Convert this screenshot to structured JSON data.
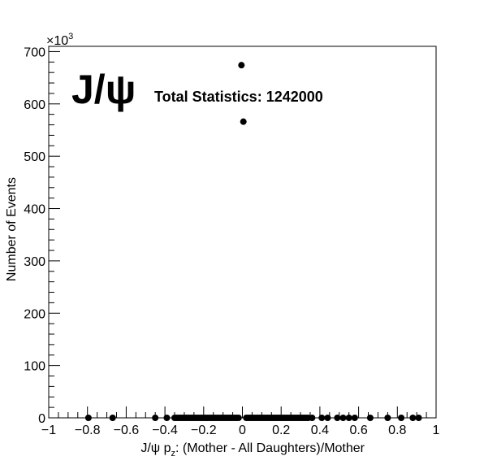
{
  "chart_data": {
    "type": "scatter",
    "title": "",
    "particle_label": "J/ψ",
    "stats_label": "Total Statistics: 1242000",
    "xlabel_parts": {
      "pre": "J/ψ p",
      "sub": "z",
      "post": ": (Mother - All Daughters)/Mother"
    },
    "ylabel": "Number of Events",
    "y_multiplier": {
      "base": "×10",
      "exp": "3"
    },
    "xlim": [
      -1,
      1
    ],
    "ylim": [
      0,
      710
    ],
    "x_ticks": [
      -1,
      -0.8,
      -0.6,
      -0.4,
      -0.2,
      0,
      0.2,
      0.4,
      0.6,
      0.8,
      1
    ],
    "x_tick_labels": [
      "−1",
      "−0.8",
      "−0.6",
      "−0.4",
      "−0.2",
      "0",
      "0.2",
      "0.4",
      "0.6",
      "0.8",
      "1"
    ],
    "y_ticks": [
      0,
      100,
      200,
      300,
      400,
      500,
      600,
      700
    ],
    "y_tick_labels": [
      "0",
      "100",
      "200",
      "300",
      "400",
      "500",
      "600",
      "700"
    ],
    "grid": false,
    "series": [
      {
        "marker": "filled-circle",
        "color": "#000000",
        "points": [
          [
            -0.795,
            0
          ],
          [
            -0.67,
            0
          ],
          [
            -0.45,
            0
          ],
          [
            -0.39,
            0
          ],
          [
            -0.35,
            0
          ],
          [
            -0.34,
            0
          ],
          [
            -0.33,
            0
          ],
          [
            -0.32,
            0
          ],
          [
            -0.31,
            0
          ],
          [
            -0.3,
            0
          ],
          [
            -0.29,
            0
          ],
          [
            -0.28,
            0
          ],
          [
            -0.27,
            0
          ],
          [
            -0.26,
            0
          ],
          [
            -0.25,
            0
          ],
          [
            -0.24,
            0
          ],
          [
            -0.23,
            0
          ],
          [
            -0.22,
            0
          ],
          [
            -0.21,
            0
          ],
          [
            -0.2,
            0
          ],
          [
            -0.19,
            0
          ],
          [
            -0.18,
            0
          ],
          [
            -0.17,
            0
          ],
          [
            -0.16,
            0
          ],
          [
            -0.15,
            0
          ],
          [
            -0.14,
            0
          ],
          [
            -0.13,
            0
          ],
          [
            -0.12,
            0
          ],
          [
            -0.11,
            0
          ],
          [
            -0.1,
            0
          ],
          [
            -0.09,
            0
          ],
          [
            -0.08,
            0
          ],
          [
            -0.07,
            0
          ],
          [
            -0.06,
            0
          ],
          [
            -0.05,
            0
          ],
          [
            -0.04,
            0
          ],
          [
            -0.03,
            0
          ],
          [
            -0.02,
            0
          ],
          [
            -0.005,
            674
          ],
          [
            0.005,
            566
          ],
          [
            0.02,
            0
          ],
          [
            0.03,
            0
          ],
          [
            0.04,
            0
          ],
          [
            0.05,
            0
          ],
          [
            0.06,
            0
          ],
          [
            0.07,
            0
          ],
          [
            0.08,
            0
          ],
          [
            0.09,
            0
          ],
          [
            0.1,
            0
          ],
          [
            0.11,
            0
          ],
          [
            0.12,
            0
          ],
          [
            0.13,
            0
          ],
          [
            0.14,
            0
          ],
          [
            0.15,
            0
          ],
          [
            0.16,
            0
          ],
          [
            0.17,
            0
          ],
          [
            0.18,
            0
          ],
          [
            0.19,
            0
          ],
          [
            0.2,
            0
          ],
          [
            0.21,
            0
          ],
          [
            0.22,
            0
          ],
          [
            0.23,
            0
          ],
          [
            0.24,
            0
          ],
          [
            0.25,
            0
          ],
          [
            0.26,
            0
          ],
          [
            0.27,
            0
          ],
          [
            0.28,
            0
          ],
          [
            0.29,
            0
          ],
          [
            0.3,
            0
          ],
          [
            0.31,
            0
          ],
          [
            0.32,
            0
          ],
          [
            0.33,
            0
          ],
          [
            0.34,
            0
          ],
          [
            0.36,
            0
          ],
          [
            0.41,
            0
          ],
          [
            0.44,
            0
          ],
          [
            0.49,
            0
          ],
          [
            0.52,
            0
          ],
          [
            0.55,
            0
          ],
          [
            0.58,
            0
          ],
          [
            0.66,
            0
          ],
          [
            0.75,
            0
          ],
          [
            0.82,
            0
          ],
          [
            0.88,
            0
          ],
          [
            0.91,
            0
          ]
        ]
      }
    ]
  }
}
